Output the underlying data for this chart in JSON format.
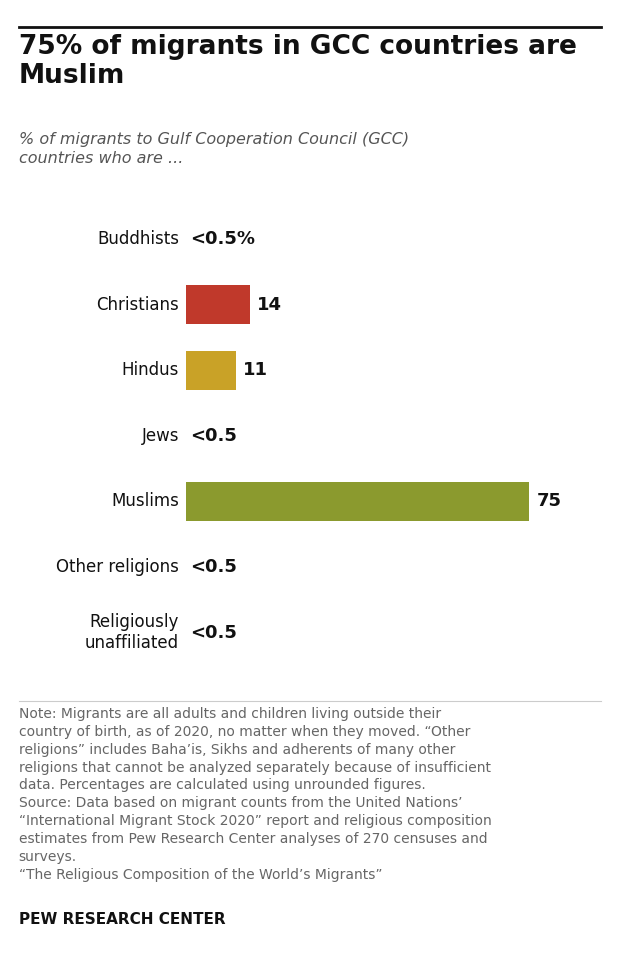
{
  "title": "75% of migrants in GCC countries are\nMuslim",
  "subtitle": "% of migrants to Gulf Cooperation Council (GCC)\ncountries who are ...",
  "categories": [
    "Buddhists",
    "Christians",
    "Hindus",
    "Jews",
    "Muslims",
    "Other religions",
    "Religiously\nunaffiliated"
  ],
  "values": [
    0,
    14,
    11,
    0,
    75,
    0,
    0
  ],
  "labels": [
    "<0.5%",
    "14",
    "11",
    "<0.5",
    "75",
    "<0.5",
    "<0.5"
  ],
  "bar_colors": [
    "#ffffff",
    "#c0392b",
    "#c9a227",
    "#ffffff",
    "#8b9a2e",
    "#ffffff",
    "#ffffff"
  ],
  "has_bar": [
    false,
    true,
    true,
    false,
    true,
    false,
    false
  ],
  "note_text": "Note: Migrants are all adults and children living outside their\ncountry of birth, as of 2020, no matter when they moved. “Other\nreligions” includes Baha’is, Sikhs and adherents of many other\nreligions that cannot be analyzed separately because of insufficient\ndata. Percentages are calculated using unrounded figures.\nSource: Data based on migrant counts from the United Nations’\n“International Migrant Stock 2020” report and religious composition\nestimates from Pew Research Center analyses of 270 censuses and\nsurveys.\n“The Religious Composition of the World’s Migrants”",
  "source_label": "PEW RESEARCH CENTER",
  "title_fontsize": 19,
  "subtitle_fontsize": 11.5,
  "cat_fontsize": 12,
  "label_fontsize": 13,
  "note_fontsize": 10,
  "source_fontsize": 11,
  "background_color": "#ffffff",
  "xlim": [
    0,
    88
  ],
  "bar_height": 0.6
}
